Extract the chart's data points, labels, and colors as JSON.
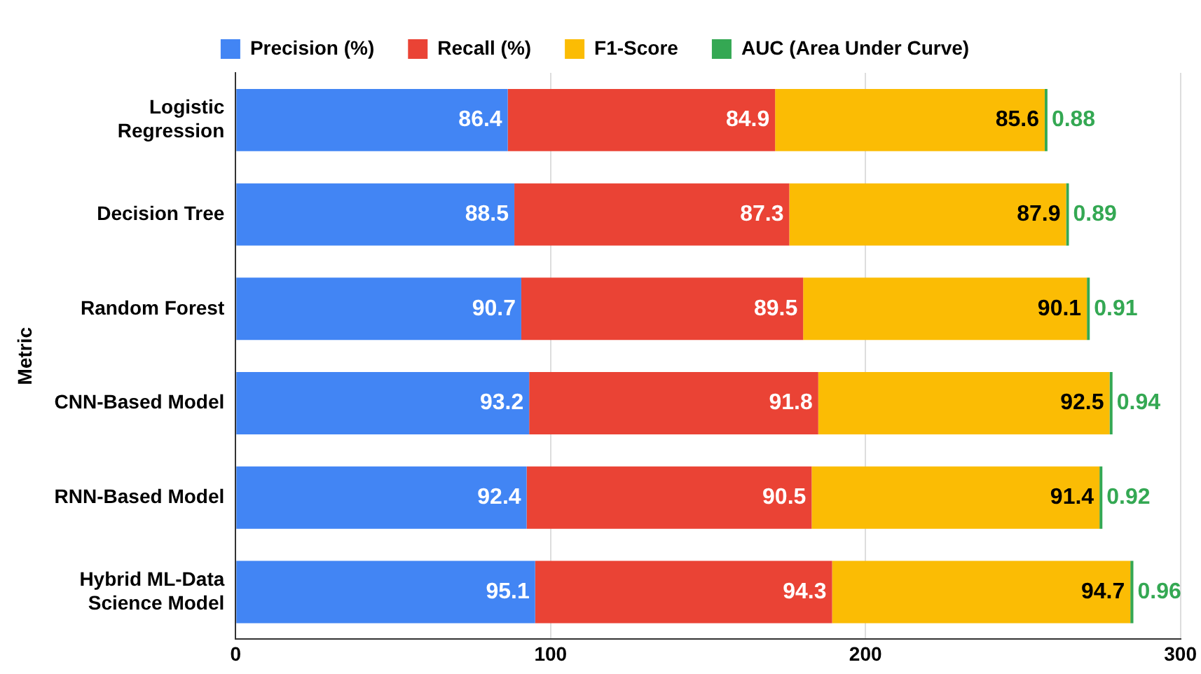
{
  "chart_data": {
    "type": "bar",
    "orientation": "horizontal",
    "stacked": true,
    "ylabel": "Metric",
    "categories": [
      "Logistic Regression",
      "Decision Tree",
      "Random Forest",
      "CNN-Based Model",
      "RNN-Based Model",
      "Hybrid ML-Data Science Model"
    ],
    "series": [
      {
        "name": "Precision (%)",
        "color": "#4285f4",
        "values": [
          86.4,
          88.5,
          90.7,
          93.2,
          92.4,
          95.1
        ]
      },
      {
        "name": "Recall (%)",
        "color": "#ea4335",
        "values": [
          84.9,
          87.3,
          89.5,
          91.8,
          90.5,
          94.3
        ]
      },
      {
        "name": "F1-Score",
        "color": "#fbbc04",
        "values": [
          85.6,
          87.9,
          90.1,
          92.5,
          91.4,
          94.7
        ]
      },
      {
        "name": "AUC (Area Under Curve)",
        "color": "#34a853",
        "values": [
          0.88,
          0.89,
          0.91,
          0.94,
          0.92,
          0.96
        ]
      }
    ],
    "xlim": [
      0,
      300
    ],
    "xticks": [
      0,
      100,
      200,
      300
    ],
    "grid": "x",
    "legend": "top",
    "data_labels": true
  }
}
